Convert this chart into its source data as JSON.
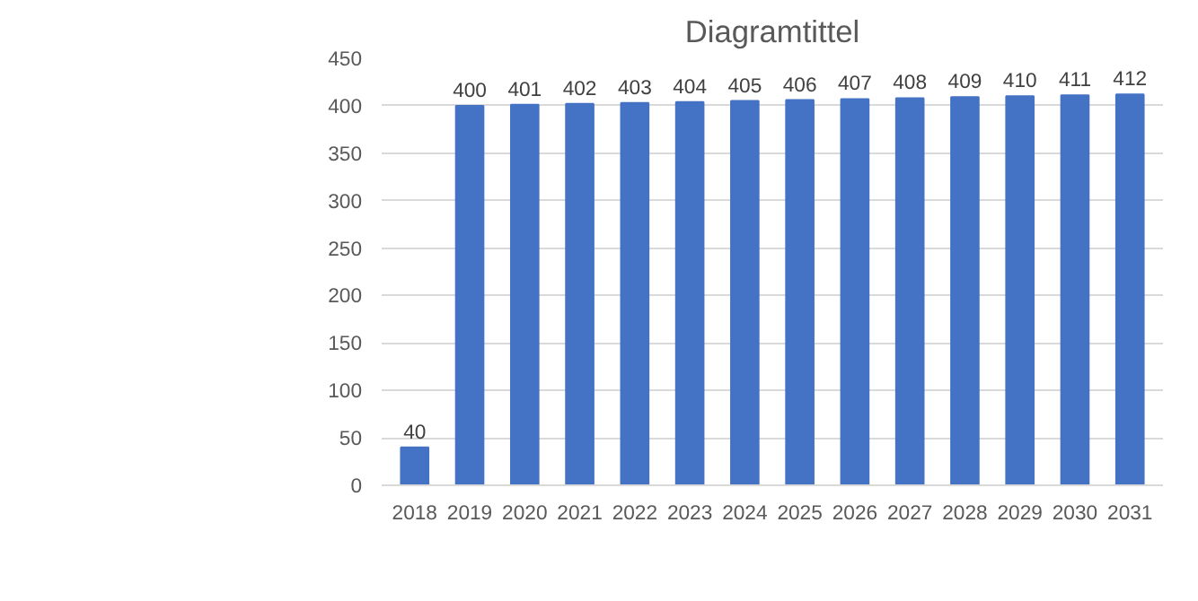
{
  "chart_data": {
    "type": "bar",
    "title": "Diagramtittel",
    "categories": [
      "2018",
      "2019",
      "2020",
      "2021",
      "2022",
      "2023",
      "2024",
      "2025",
      "2026",
      "2027",
      "2028",
      "2029",
      "2030",
      "2031"
    ],
    "values": [
      40,
      400,
      401,
      402,
      403,
      404,
      405,
      406,
      407,
      408,
      409,
      410,
      411,
      412
    ],
    "color": "#4472c4",
    "ylim": [
      0,
      450
    ],
    "yticks": [
      0,
      50,
      100,
      150,
      200,
      250,
      300,
      350,
      400,
      450
    ],
    "grid": "y",
    "data_labels": true
  }
}
